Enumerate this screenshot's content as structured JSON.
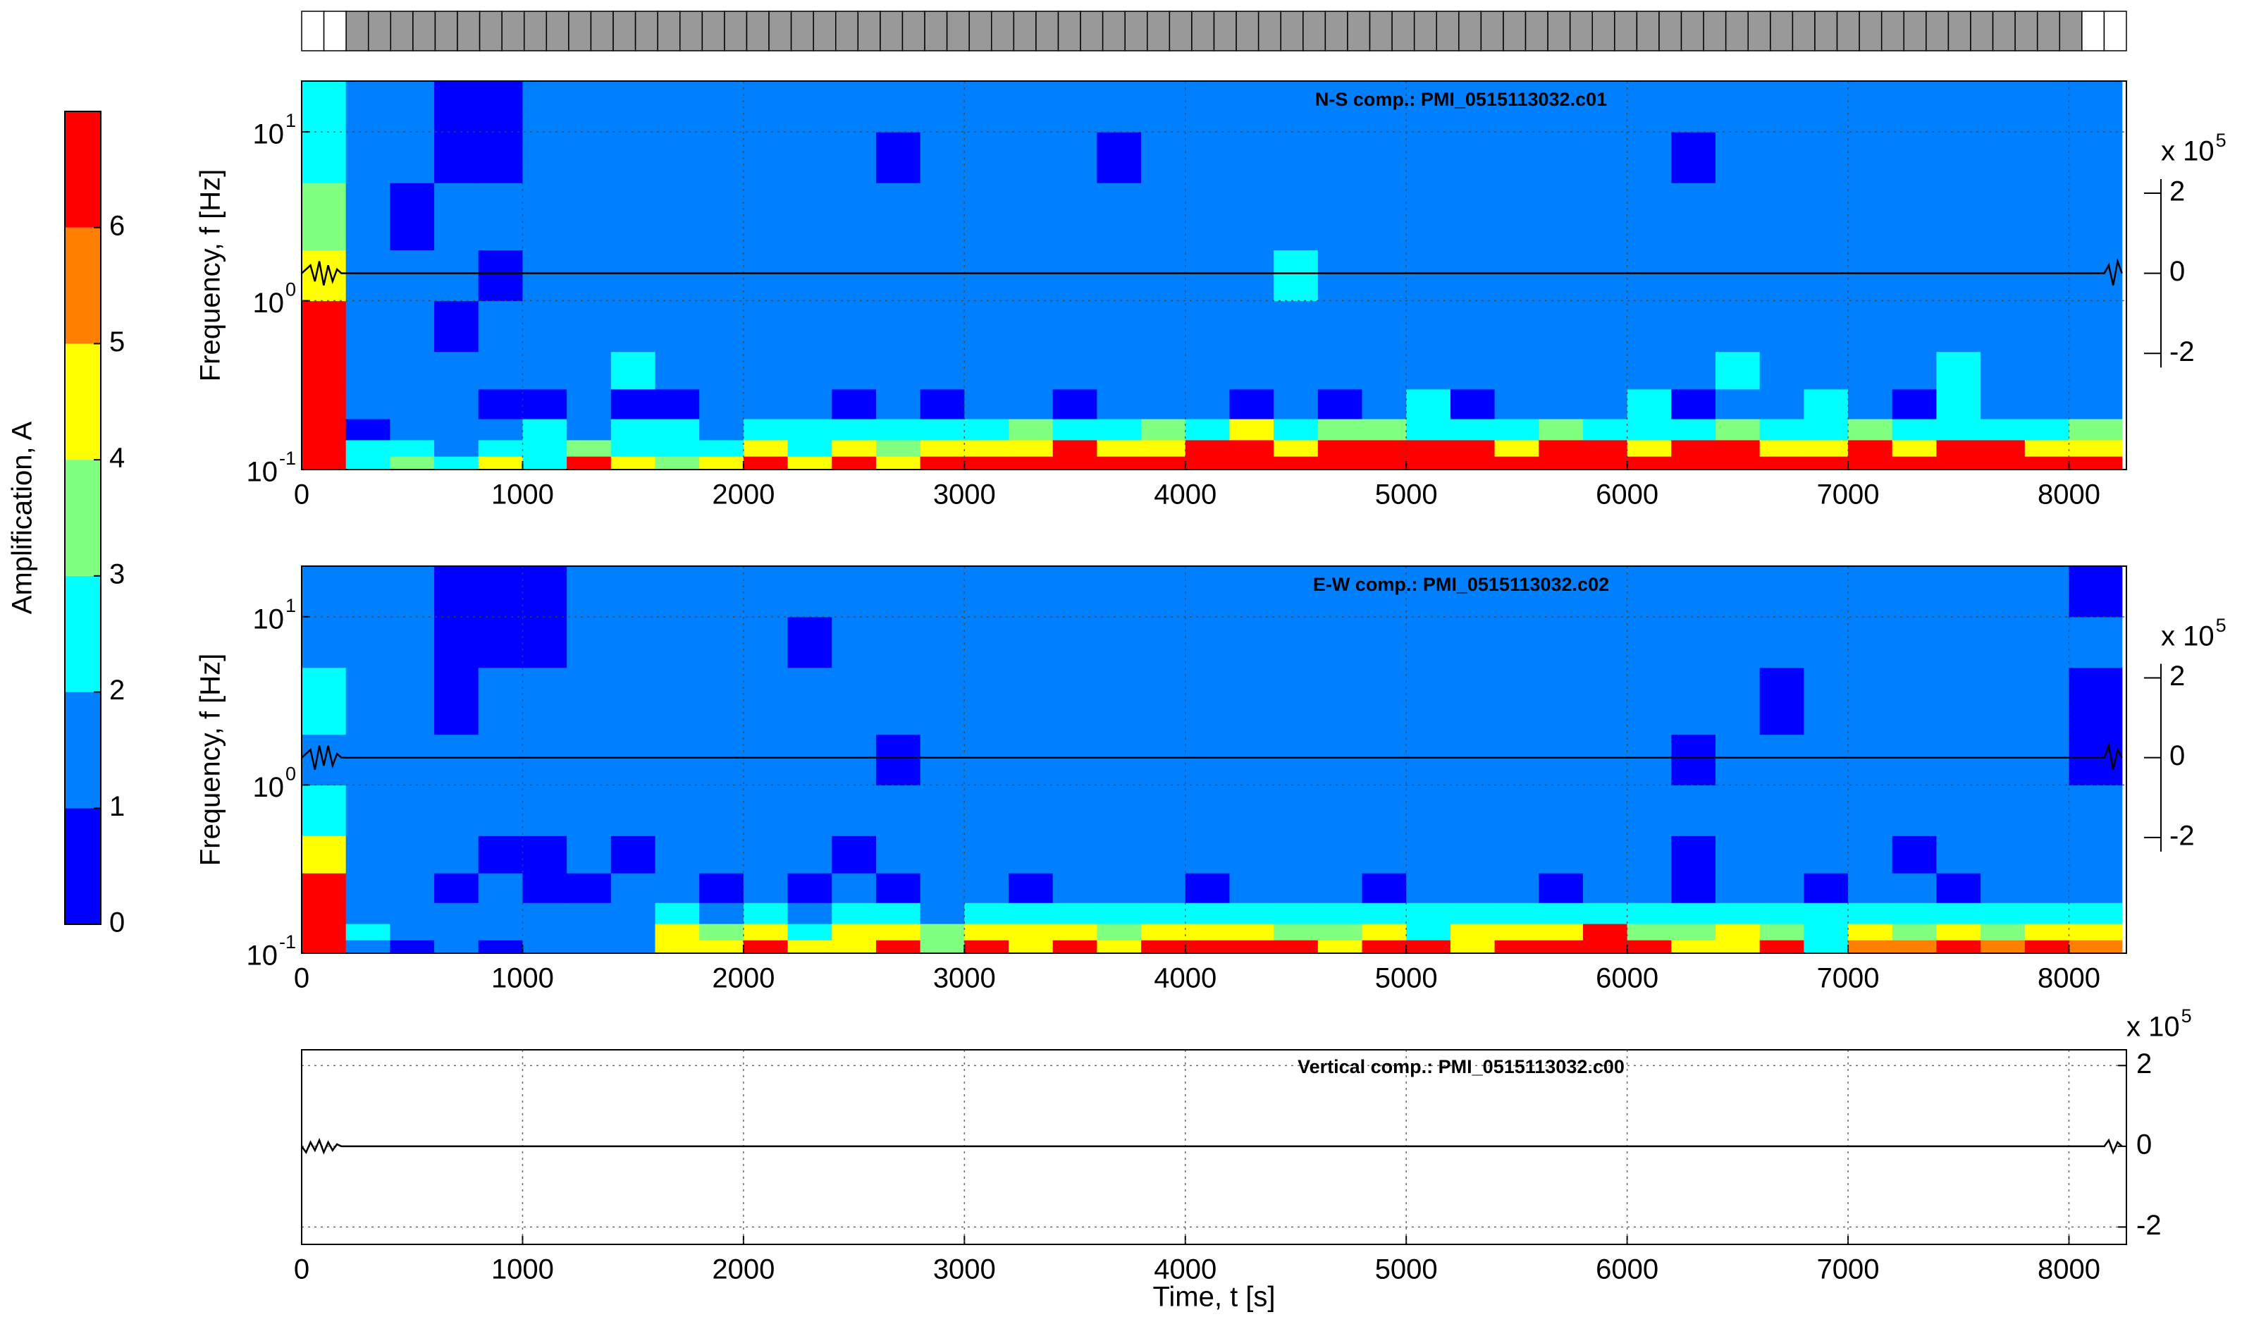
{
  "chart_data": [
    {
      "type": "colorbar",
      "label": "Amplification, A",
      "ylim": [
        0,
        7
      ],
      "yticks": [
        0,
        1,
        2,
        3,
        4,
        5,
        6
      ],
      "levels": [
        0,
        1,
        2,
        3,
        4,
        5,
        6,
        7
      ],
      "colors": [
        "#0000ff",
        "#0080ff",
        "#00ffff",
        "#80ff80",
        "#ffff00",
        "#ff8000",
        "#ff0000"
      ]
    },
    {
      "type": "heatmap",
      "title": "N-S comp.: PMI_0515113032.c01",
      "ylabel": "Frequency, f [Hz]",
      "log_y": true,
      "grid": true,
      "xlim": [
        0,
        8260
      ],
      "xticks": [
        0,
        1000,
        2000,
        3000,
        4000,
        5000,
        6000,
        7000,
        8000
      ],
      "ylim": [
        0.1,
        20
      ],
      "yticks": [
        {
          "value": 0.1,
          "label": "10",
          "exponent": "-1"
        },
        {
          "value": 1,
          "label": "10",
          "exponent": "0"
        },
        {
          "value": 10,
          "label": "10",
          "exponent": "1"
        }
      ],
      "x_edges": [
        0,
        200,
        400,
        600,
        800,
        1000,
        1200,
        1400,
        1600,
        1800,
        2000,
        2200,
        2400,
        2600,
        2800,
        3000,
        3200,
        3400,
        3600,
        3800,
        4000,
        4200,
        4400,
        4600,
        4800,
        5000,
        5200,
        5400,
        5600,
        5800,
        6000,
        6200,
        6400,
        6600,
        6800,
        7000,
        7200,
        7400,
        7600,
        7800,
        8000,
        8240
      ],
      "y_edges": [
        0.1,
        0.12,
        0.15,
        0.2,
        0.3,
        0.5,
        1,
        2,
        5,
        10,
        20
      ],
      "z": [
        [
          6,
          2,
          3,
          2,
          4,
          2,
          6,
          4,
          3,
          4,
          6,
          4,
          6,
          4,
          6,
          6,
          6,
          6,
          6,
          6,
          6,
          6,
          6,
          6,
          6,
          6,
          6,
          6,
          6,
          6,
          6,
          6,
          6,
          6,
          6,
          6,
          6,
          6,
          6,
          6,
          6
        ],
        [
          6,
          2,
          2,
          1,
          2,
          2,
          3,
          2,
          2,
          2,
          4,
          2,
          4,
          3,
          4,
          4,
          4,
          6,
          4,
          4,
          6,
          6,
          4,
          6,
          6,
          6,
          6,
          4,
          6,
          6,
          4,
          6,
          6,
          4,
          4,
          6,
          4,
          6,
          6,
          4,
          4
        ],
        [
          6,
          0,
          1,
          1,
          1,
          2,
          1,
          2,
          2,
          1,
          2,
          2,
          2,
          2,
          2,
          2,
          3,
          2,
          2,
          3,
          2,
          4,
          2,
          3,
          3,
          2,
          2,
          2,
          3,
          2,
          2,
          2,
          3,
          2,
          2,
          3,
          2,
          2,
          2,
          2,
          3
        ],
        [
          6,
          1,
          1,
          1,
          0,
          0,
          1,
          0,
          0,
          1,
          1,
          1,
          0,
          1,
          0,
          1,
          1,
          0,
          1,
          1,
          1,
          0,
          1,
          0,
          1,
          2,
          0,
          1,
          1,
          1,
          2,
          0,
          1,
          1,
          2,
          1,
          0,
          2,
          1,
          1,
          1
        ],
        [
          6,
          1,
          1,
          1,
          1,
          1,
          1,
          2,
          1,
          1,
          1,
          1,
          1,
          1,
          1,
          1,
          1,
          1,
          1,
          1,
          1,
          1,
          1,
          1,
          1,
          1,
          1,
          1,
          1,
          1,
          1,
          1,
          2,
          1,
          1,
          1,
          1,
          2,
          1,
          1,
          1
        ],
        [
          6,
          1,
          1,
          0,
          1,
          1,
          1,
          1,
          1,
          1,
          1,
          1,
          1,
          1,
          1,
          1,
          1,
          1,
          1,
          1,
          1,
          1,
          1,
          1,
          1,
          1,
          1,
          1,
          1,
          1,
          1,
          1,
          1,
          1,
          1,
          1,
          1,
          1,
          1,
          1,
          1
        ],
        [
          4,
          1,
          1,
          1,
          0,
          1,
          1,
          1,
          1,
          1,
          1,
          1,
          1,
          1,
          1,
          1,
          1,
          1,
          1,
          1,
          1,
          1,
          2,
          1,
          1,
          1,
          1,
          1,
          1,
          1,
          1,
          1,
          1,
          1,
          1,
          1,
          1,
          1,
          1,
          1,
          1
        ],
        [
          3,
          1,
          0,
          1,
          1,
          1,
          1,
          1,
          1,
          1,
          1,
          1,
          1,
          1,
          1,
          1,
          1,
          1,
          1,
          1,
          1,
          1,
          1,
          1,
          1,
          1,
          1,
          1,
          1,
          1,
          1,
          1,
          1,
          1,
          1,
          1,
          1,
          1,
          1,
          1,
          1
        ],
        [
          2,
          1,
          1,
          0,
          0,
          1,
          1,
          1,
          1,
          1,
          1,
          1,
          1,
          0,
          1,
          1,
          1,
          1,
          0,
          1,
          1,
          1,
          1,
          1,
          1,
          1,
          1,
          1,
          1,
          1,
          1,
          0,
          1,
          1,
          1,
          1,
          1,
          1,
          1,
          1,
          1
        ],
        [
          2,
          1,
          1,
          0,
          0,
          1,
          1,
          1,
          1,
          1,
          1,
          1,
          1,
          1,
          1,
          1,
          1,
          1,
          1,
          1,
          1,
          1,
          1,
          1,
          1,
          1,
          1,
          1,
          1,
          1,
          1,
          1,
          1,
          1,
          1,
          1,
          1,
          1,
          1,
          1,
          1
        ]
      ],
      "y2lim": [
        -4.9,
        4.8
      ],
      "y2ticks": [
        -2,
        0,
        2
      ],
      "y2_scale_label": "x 10",
      "y2_scale_exponent": "5",
      "trace": {
        "color": "#000000",
        "axis": "y2",
        "x": [
          0,
          40,
          60,
          80,
          100,
          120,
          140,
          160,
          180,
          8160,
          8180,
          8200,
          8220,
          8240
        ],
        "y": [
          0,
          0.2,
          -0.2,
          0.3,
          -0.3,
          0.2,
          -0.2,
          0.1,
          0,
          0,
          0.2,
          -0.3,
          0.3,
          0
        ]
      }
    },
    {
      "type": "heatmap",
      "title": "E-W comp.: PMI_0515113032.c02",
      "ylabel": "Frequency, f [Hz]",
      "log_y": true,
      "grid": true,
      "xlim": [
        0,
        8260
      ],
      "xticks": [
        0,
        1000,
        2000,
        3000,
        4000,
        5000,
        6000,
        7000,
        8000
      ],
      "ylim": [
        0.1,
        20
      ],
      "yticks": [
        {
          "value": 0.1,
          "label": "10",
          "exponent": "-1"
        },
        {
          "value": 1,
          "label": "10",
          "exponent": "0"
        },
        {
          "value": 10,
          "label": "10",
          "exponent": "1"
        }
      ],
      "x_edges": [
        0,
        200,
        400,
        600,
        800,
        1000,
        1200,
        1400,
        1600,
        1800,
        2000,
        2200,
        2400,
        2600,
        2800,
        3000,
        3200,
        3400,
        3600,
        3800,
        4000,
        4200,
        4400,
        4600,
        4800,
        5000,
        5200,
        5400,
        5600,
        5800,
        6000,
        6200,
        6400,
        6600,
        6800,
        7000,
        7200,
        7400,
        7600,
        7800,
        8000,
        8240
      ],
      "y_edges": [
        0.1,
        0.12,
        0.15,
        0.2,
        0.3,
        0.5,
        1,
        2,
        5,
        10,
        20
      ],
      "z": [
        [
          6,
          1,
          0,
          1,
          0,
          1,
          1,
          1,
          4,
          4,
          6,
          4,
          4,
          6,
          3,
          6,
          4,
          6,
          4,
          6,
          6,
          6,
          6,
          4,
          6,
          6,
          4,
          6,
          6,
          6,
          6,
          4,
          4,
          6,
          2,
          5,
          5,
          6,
          5,
          6,
          5
        ],
        [
          6,
          2,
          1,
          1,
          1,
          1,
          1,
          1,
          4,
          3,
          4,
          2,
          4,
          4,
          3,
          4,
          4,
          4,
          3,
          4,
          4,
          4,
          3,
          3,
          4,
          2,
          4,
          4,
          4,
          6,
          3,
          3,
          4,
          3,
          2,
          4,
          3,
          4,
          3,
          4,
          4
        ],
        [
          6,
          1,
          1,
          1,
          1,
          1,
          1,
          1,
          2,
          1,
          2,
          1,
          2,
          2,
          1,
          2,
          2,
          2,
          2,
          2,
          2,
          2,
          2,
          2,
          2,
          2,
          2,
          2,
          2,
          2,
          2,
          2,
          2,
          2,
          2,
          2,
          2,
          2,
          2,
          2,
          2
        ],
        [
          6,
          1,
          1,
          0,
          1,
          0,
          0,
          1,
          1,
          0,
          1,
          0,
          1,
          0,
          1,
          1,
          0,
          1,
          1,
          1,
          0,
          1,
          1,
          1,
          0,
          1,
          1,
          1,
          0,
          1,
          1,
          0,
          1,
          1,
          0,
          1,
          1,
          0,
          1,
          1,
          1
        ],
        [
          4,
          1,
          1,
          1,
          0,
          0,
          1,
          0,
          1,
          1,
          1,
          1,
          0,
          1,
          1,
          1,
          1,
          1,
          1,
          1,
          1,
          1,
          1,
          1,
          1,
          1,
          1,
          1,
          1,
          1,
          1,
          0,
          1,
          1,
          1,
          1,
          0,
          1,
          1,
          1,
          1
        ],
        [
          2,
          1,
          1,
          1,
          1,
          1,
          1,
          1,
          1,
          1,
          1,
          1,
          1,
          1,
          1,
          1,
          1,
          1,
          1,
          1,
          1,
          1,
          1,
          1,
          1,
          1,
          1,
          1,
          1,
          1,
          1,
          1,
          1,
          1,
          1,
          1,
          1,
          1,
          1,
          1,
          1
        ],
        [
          1,
          1,
          1,
          1,
          1,
          1,
          1,
          1,
          1,
          1,
          1,
          1,
          1,
          0,
          1,
          1,
          1,
          1,
          1,
          1,
          1,
          1,
          1,
          1,
          1,
          1,
          1,
          1,
          1,
          1,
          1,
          0,
          1,
          1,
          1,
          1,
          1,
          1,
          1,
          1,
          0
        ],
        [
          2,
          1,
          1,
          0,
          1,
          1,
          1,
          1,
          1,
          1,
          1,
          1,
          1,
          1,
          1,
          1,
          1,
          1,
          1,
          1,
          1,
          1,
          1,
          1,
          1,
          1,
          1,
          1,
          1,
          1,
          1,
          1,
          1,
          0,
          1,
          1,
          1,
          1,
          1,
          1,
          0
        ],
        [
          1,
          1,
          1,
          0,
          0,
          0,
          1,
          1,
          1,
          1,
          1,
          0,
          1,
          1,
          1,
          1,
          1,
          1,
          1,
          1,
          1,
          1,
          1,
          1,
          1,
          1,
          1,
          1,
          1,
          1,
          1,
          1,
          1,
          1,
          1,
          1,
          1,
          1,
          1,
          1,
          1
        ],
        [
          1,
          1,
          1,
          0,
          0,
          0,
          1,
          1,
          1,
          1,
          1,
          1,
          1,
          1,
          1,
          1,
          1,
          1,
          1,
          1,
          1,
          1,
          1,
          1,
          1,
          1,
          1,
          1,
          1,
          1,
          1,
          1,
          1,
          1,
          1,
          1,
          1,
          1,
          1,
          1,
          0
        ]
      ],
      "y2lim": [
        -4.9,
        4.8
      ],
      "y2ticks": [
        -2,
        0,
        2
      ],
      "y2_scale_label": "x 10",
      "y2_scale_exponent": "5",
      "trace": {
        "color": "#000000",
        "axis": "y2",
        "x": [
          0,
          40,
          60,
          80,
          100,
          120,
          140,
          160,
          180,
          8160,
          8180,
          8200,
          8220,
          8240
        ],
        "y": [
          0,
          0.2,
          -0.3,
          0.3,
          -0.2,
          0.3,
          -0.2,
          0.1,
          0,
          0,
          0.3,
          -0.3,
          0.2,
          0
        ]
      }
    },
    {
      "type": "line",
      "title": "Vertical comp.: PMI_0515113032.c00",
      "xlabel": "Time, t [s]",
      "grid": true,
      "xlim": [
        0,
        8260
      ],
      "xticks": [
        0,
        1000,
        2000,
        3000,
        4000,
        5000,
        6000,
        7000,
        8000
      ],
      "ylim": [
        -2.43,
        2.39
      ],
      "yticks": [
        -2,
        0,
        2
      ],
      "y_scale_label": "x 10",
      "y_scale_exponent": "5",
      "trace": {
        "color": "#000000",
        "x": [
          0,
          20,
          40,
          60,
          80,
          100,
          120,
          140,
          160,
          180,
          8160,
          8180,
          8200,
          8220,
          8240
        ],
        "y": [
          0,
          -0.15,
          0.1,
          -0.1,
          0.15,
          -0.15,
          0.1,
          -0.1,
          0.05,
          0,
          0,
          0.15,
          -0.15,
          0.1,
          0
        ]
      }
    }
  ]
}
